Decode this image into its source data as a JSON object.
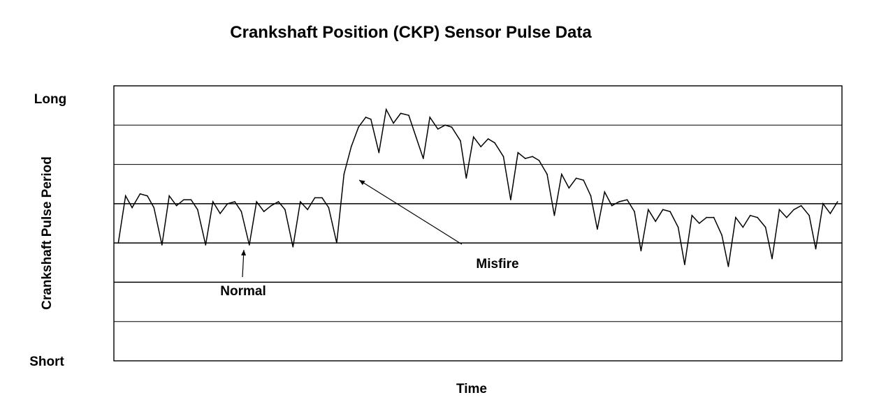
{
  "chart_data": {
    "type": "line",
    "title": "Crankshaft Position (CKP) Sensor Pulse Data",
    "xlabel": "Time",
    "ylabel": "Crankshaft Pulse Period",
    "y_top_label": "Long",
    "y_bottom_label": "Short",
    "ylim": [
      0,
      7
    ],
    "grid": true,
    "gridlines_y": [
      1,
      2,
      3,
      4,
      5,
      6
    ],
    "xlim": [
      0,
      100
    ],
    "series": [
      {
        "values": [
          [
            0.6,
            3.0
          ],
          [
            1.6,
            4.2
          ],
          [
            2.5,
            3.9
          ],
          [
            3.6,
            4.25
          ],
          [
            4.6,
            4.2
          ],
          [
            5.5,
            3.9
          ],
          [
            6.6,
            2.95
          ],
          [
            7.6,
            4.2
          ],
          [
            8.6,
            3.95
          ],
          [
            9.6,
            4.1
          ],
          [
            10.6,
            4.1
          ],
          [
            11.5,
            3.85
          ],
          [
            12.6,
            2.95
          ],
          [
            13.6,
            4.05
          ],
          [
            14.6,
            3.75
          ],
          [
            15.6,
            4.0
          ],
          [
            16.6,
            4.05
          ],
          [
            17.5,
            3.8
          ],
          [
            18.6,
            2.95
          ],
          [
            19.6,
            4.05
          ],
          [
            20.6,
            3.8
          ],
          [
            21.6,
            3.95
          ],
          [
            22.6,
            4.05
          ],
          [
            23.5,
            3.85
          ],
          [
            24.6,
            2.9
          ],
          [
            25.6,
            4.05
          ],
          [
            26.6,
            3.85
          ],
          [
            27.6,
            4.15
          ],
          [
            28.6,
            4.15
          ],
          [
            29.5,
            3.9
          ],
          [
            30.6,
            3.0
          ],
          [
            31.6,
            4.75
          ],
          [
            32.6,
            5.45
          ],
          [
            33.6,
            5.95
          ],
          [
            34.6,
            6.2
          ],
          [
            35.3,
            6.15
          ],
          [
            36.4,
            5.3
          ],
          [
            37.4,
            6.4
          ],
          [
            38.4,
            6.05
          ],
          [
            39.4,
            6.3
          ],
          [
            40.5,
            6.25
          ],
          [
            41.5,
            5.7
          ],
          [
            42.5,
            5.15
          ],
          [
            43.4,
            6.2
          ],
          [
            44.5,
            5.9
          ],
          [
            45.5,
            6.0
          ],
          [
            46.4,
            5.95
          ],
          [
            47.6,
            5.6
          ],
          [
            48.4,
            4.65
          ],
          [
            49.4,
            5.7
          ],
          [
            50.4,
            5.45
          ],
          [
            51.4,
            5.65
          ],
          [
            52.3,
            5.55
          ],
          [
            53.5,
            5.2
          ],
          [
            54.5,
            4.1
          ],
          [
            55.5,
            5.3
          ],
          [
            56.5,
            5.15
          ],
          [
            57.5,
            5.2
          ],
          [
            58.4,
            5.1
          ],
          [
            59.5,
            4.75
          ],
          [
            60.5,
            3.7
          ],
          [
            61.5,
            4.75
          ],
          [
            62.5,
            4.4
          ],
          [
            63.5,
            4.65
          ],
          [
            64.5,
            4.6
          ],
          [
            65.5,
            4.2
          ],
          [
            66.4,
            3.35
          ],
          [
            67.4,
            4.3
          ],
          [
            68.4,
            3.95
          ],
          [
            69.4,
            4.05
          ],
          [
            70.5,
            4.1
          ],
          [
            71.5,
            3.8
          ],
          [
            72.4,
            2.8
          ],
          [
            73.4,
            3.85
          ],
          [
            74.4,
            3.55
          ],
          [
            75.4,
            3.85
          ],
          [
            76.4,
            3.8
          ],
          [
            77.5,
            3.4
          ],
          [
            78.4,
            2.45
          ],
          [
            79.4,
            3.7
          ],
          [
            80.4,
            3.5
          ],
          [
            81.4,
            3.65
          ],
          [
            82.4,
            3.65
          ],
          [
            83.5,
            3.2
          ],
          [
            84.4,
            2.4
          ],
          [
            85.4,
            3.65
          ],
          [
            86.4,
            3.4
          ],
          [
            87.4,
            3.7
          ],
          [
            88.4,
            3.65
          ],
          [
            89.5,
            3.4
          ],
          [
            90.4,
            2.6
          ],
          [
            91.4,
            3.85
          ],
          [
            92.4,
            3.65
          ],
          [
            93.4,
            3.85
          ],
          [
            94.4,
            3.95
          ],
          [
            95.5,
            3.7
          ],
          [
            96.4,
            2.85
          ],
          [
            97.4,
            4.0
          ],
          [
            98.4,
            3.75
          ],
          [
            99.4,
            4.05
          ]
        ]
      }
    ],
    "annotations": [
      {
        "text": "Normal",
        "arrow_to": [
          18.0,
          3.0
        ]
      },
      {
        "text": "Misfire",
        "arrow_to": [
          33.6,
          4.55
        ]
      }
    ]
  }
}
